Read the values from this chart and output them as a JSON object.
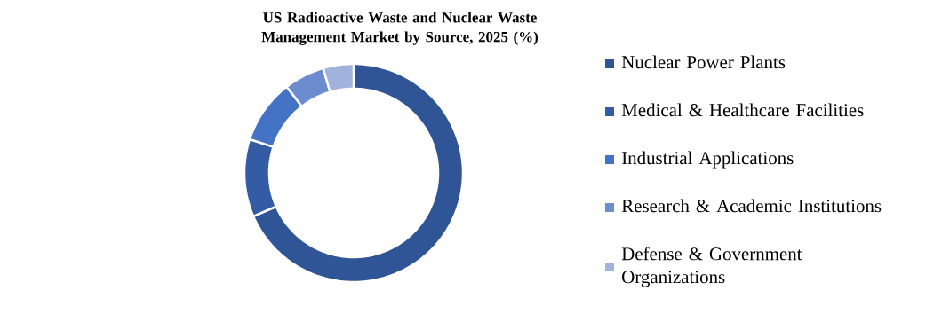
{
  "chart_data": {
    "type": "donut",
    "title": "US Radioactive  Waste and Nuclear Waste Management Market by Source, 2025 (%)",
    "categories": [
      "Nuclear Power Plants",
      "Medical & Healthcare Facilities",
      "Industrial Applications",
      "Research & Academic Institutions",
      "Defense & Government Organizations"
    ],
    "values": [
      68.5,
      11.5,
      9.5,
      6,
      4.5
    ],
    "colors": [
      "#2f5597",
      "#335ca5",
      "#4472c4",
      "#6d8ccf",
      "#a1b2dc"
    ],
    "legend": "right"
  }
}
